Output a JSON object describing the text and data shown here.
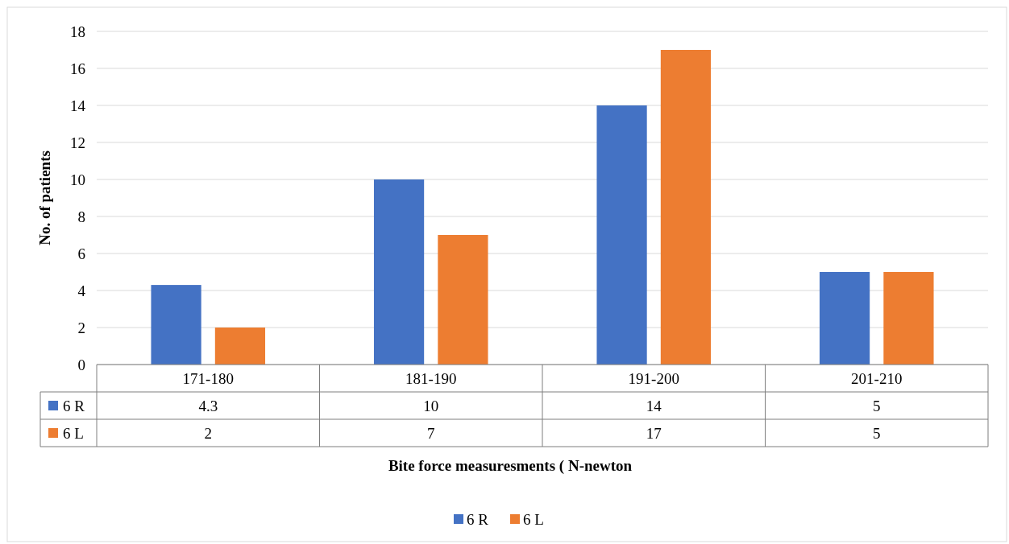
{
  "chart_data": {
    "type": "bar",
    "xlabel": "Bite force measuresments ( N-newton",
    "ylabel": "No. of patients",
    "categories": [
      "171-180",
      "181-190",
      "191-200",
      "201-210"
    ],
    "series": [
      {
        "name": "6 R",
        "color": "#4472c4",
        "values": [
          4.3,
          10,
          14,
          5
        ]
      },
      {
        "name": "6 L",
        "color": "#ed7d31",
        "values": [
          2,
          7,
          17,
          5
        ]
      }
    ],
    "ylim": [
      0,
      18
    ],
    "yticks": [
      0,
      2,
      4,
      6,
      8,
      10,
      12,
      14,
      16,
      18
    ],
    "grid": "y",
    "legend": "bottom",
    "data_labels": true
  }
}
